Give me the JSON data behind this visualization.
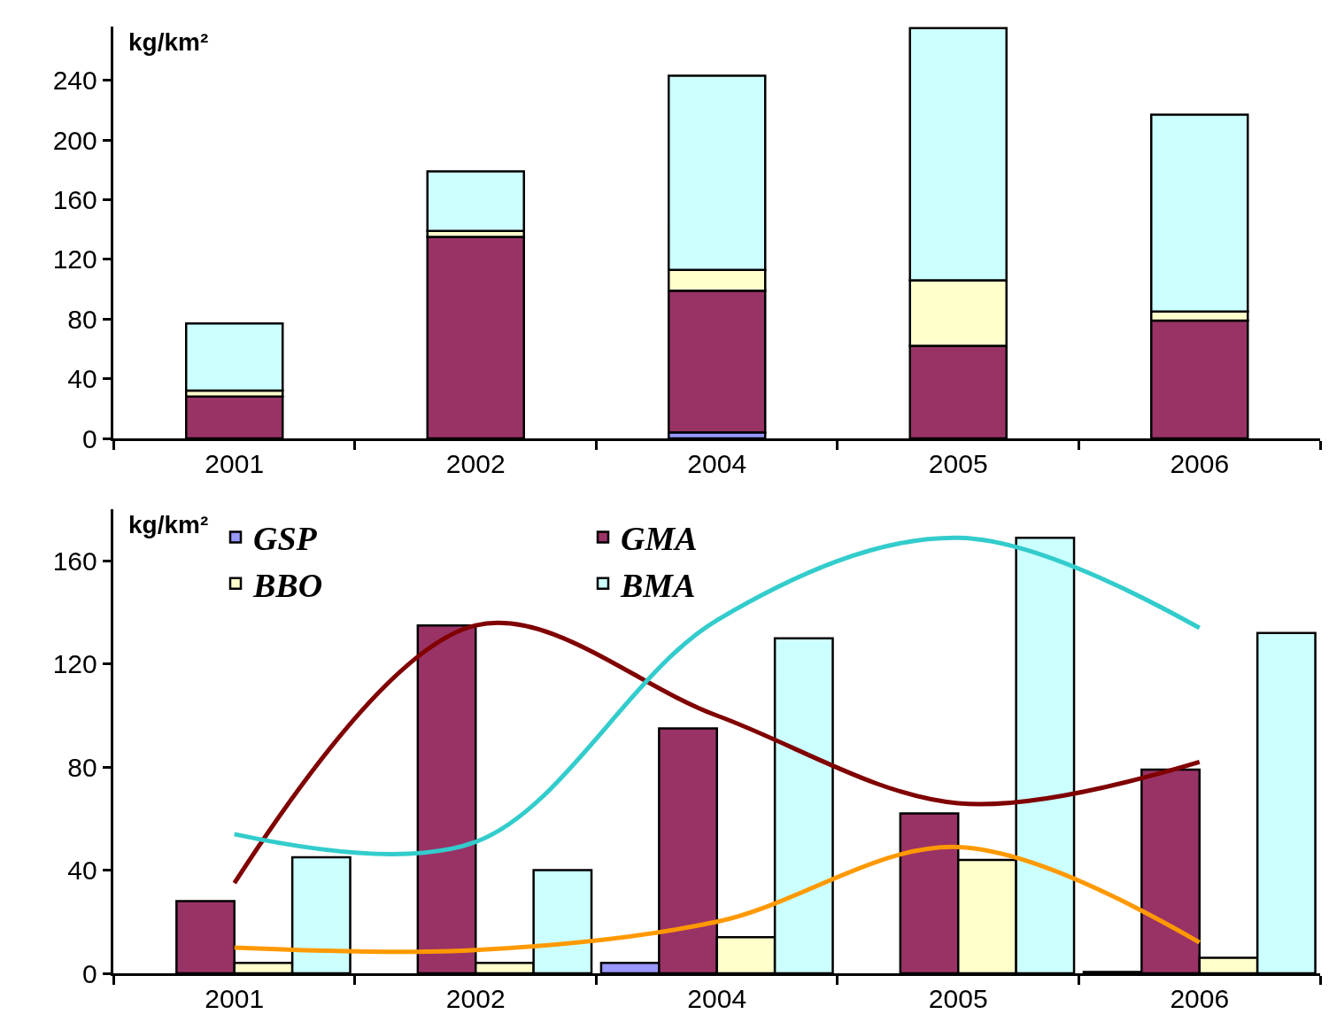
{
  "chart_data": [
    {
      "type": "bar",
      "stacked": true,
      "ylabel": "kg/km²",
      "categories": [
        "2001",
        "2002",
        "2004",
        "2005",
        "2006"
      ],
      "ylim": [
        0,
        276
      ],
      "yticks": [
        0,
        40,
        80,
        120,
        160,
        200,
        240
      ],
      "series": [
        {
          "color": "#9999ff",
          "values": [
            null,
            null,
            4,
            null,
            null
          ]
        },
        {
          "color": "#993366",
          "values": [
            28,
            135,
            95,
            62,
            79
          ]
        },
        {
          "color": "#ffffcc",
          "values": [
            4,
            4,
            14,
            44,
            6
          ]
        },
        {
          "color": "#ccffff",
          "values": [
            45,
            40,
            130,
            169,
            132
          ]
        }
      ]
    },
    {
      "type": "bar",
      "ylabel": "kg/km²",
      "categories": [
        "2001",
        "2002",
        "2004",
        "2005",
        "2006"
      ],
      "ylim": [
        0,
        180
      ],
      "yticks": [
        0,
        40,
        80,
        120,
        160
      ],
      "legend": "top left",
      "series": [
        {
          "name": "GSP",
          "color": "#9999ff",
          "values": [
            null,
            null,
            4,
            null,
            0.5
          ]
        },
        {
          "name": "GMA",
          "color": "#993366",
          "values": [
            28,
            135,
            95,
            62,
            79
          ]
        },
        {
          "name": "BBO",
          "color": "#ffffcc",
          "values": [
            4,
            4,
            14,
            44,
            6
          ]
        },
        {
          "name": "BMA",
          "color": "#ccffff",
          "values": [
            45,
            40,
            130,
            169,
            132
          ]
        },
        {
          "type": "line",
          "color": "#800000",
          "values": [
            35,
            135,
            100,
            66,
            82
          ]
        },
        {
          "type": "line",
          "color": "#33cccc",
          "values": [
            54,
            51,
            137,
            169,
            134
          ]
        },
        {
          "type": "line",
          "color": "#ff9900",
          "values": [
            10,
            9,
            20,
            49,
            12
          ]
        }
      ]
    }
  ]
}
